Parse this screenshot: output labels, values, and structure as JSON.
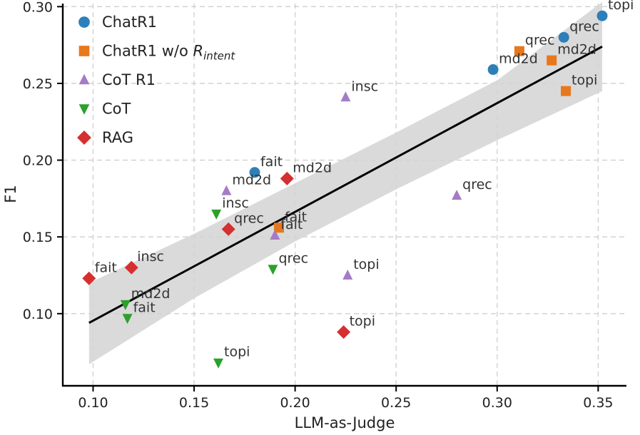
{
  "chart_data": {
    "type": "scatter",
    "xlabel": "LLM-as-Judge",
    "ylabel": "F1",
    "xlim": [
      0.085,
      0.364
    ],
    "ylim": [
      0.053,
      0.302
    ],
    "xticks": [
      0.1,
      0.15,
      0.2,
      0.25,
      0.3,
      0.35
    ],
    "xtick_labels": [
      "0.10",
      "0.15",
      "0.20",
      "0.25",
      "0.30",
      "0.35"
    ],
    "yticks": [
      0.1,
      0.15,
      0.2,
      0.25,
      0.3
    ],
    "ytick_labels": [
      "0.10",
      "0.15",
      "0.20",
      "0.25",
      "0.30"
    ],
    "grid": true,
    "legend_position": "top-left",
    "colors": {
      "chatr1": "#2e7fb9",
      "chatr1_wo": "#e8781c",
      "cot_r1": "#a57bc6",
      "cot": "#2ca02c",
      "rag": "#d62f2f",
      "fit_line": "#000000",
      "ci_band": "#d3d3d3"
    },
    "series": [
      {
        "name": "ChatR1",
        "legend": "ChatR1",
        "marker": "circle",
        "color_key": "chatr1",
        "points": [
          {
            "x": 0.352,
            "y": 0.294,
            "label": "topi"
          },
          {
            "x": 0.333,
            "y": 0.28,
            "label": "qrec"
          },
          {
            "x": 0.298,
            "y": 0.259,
            "label": "md2d"
          },
          {
            "x": 0.18,
            "y": 0.192,
            "label": "fait"
          }
        ]
      },
      {
        "name": "ChatR1 w/o R_intent",
        "legend": "ChatR1 w/o ",
        "legend_r": "R",
        "legend_sub": "intent",
        "marker": "square",
        "color_key": "chatr1_wo",
        "points": [
          {
            "x": 0.311,
            "y": 0.271,
            "label": "qrec"
          },
          {
            "x": 0.327,
            "y": 0.265,
            "label": "md2d"
          },
          {
            "x": 0.334,
            "y": 0.245,
            "label": "topi"
          },
          {
            "x": 0.192,
            "y": 0.156,
            "label": "fait"
          }
        ]
      },
      {
        "name": "CoT R1",
        "legend": "CoT R1",
        "marker": "triangle-up",
        "color_key": "cot_r1",
        "points": [
          {
            "x": 0.225,
            "y": 0.241,
            "label": "insc"
          },
          {
            "x": 0.166,
            "y": 0.18,
            "label": "md2d"
          },
          {
            "x": 0.28,
            "y": 0.177,
            "label": "qrec"
          },
          {
            "x": 0.19,
            "y": 0.151,
            "label": "fait"
          },
          {
            "x": 0.226,
            "y": 0.125,
            "label": "topi"
          }
        ]
      },
      {
        "name": "CoT",
        "legend": "CoT",
        "marker": "triangle-down",
        "color_key": "cot",
        "points": [
          {
            "x": 0.161,
            "y": 0.165,
            "label": "insc"
          },
          {
            "x": 0.189,
            "y": 0.129,
            "label": "qrec"
          },
          {
            "x": 0.116,
            "y": 0.106,
            "label": "md2d"
          },
          {
            "x": 0.117,
            "y": 0.097,
            "label": "fait"
          },
          {
            "x": 0.162,
            "y": 0.068,
            "label": "topi"
          }
        ]
      },
      {
        "name": "RAG",
        "legend": "RAG",
        "marker": "diamond",
        "color_key": "rag",
        "points": [
          {
            "x": 0.196,
            "y": 0.188,
            "label": "md2d"
          },
          {
            "x": 0.167,
            "y": 0.155,
            "label": "qrec"
          },
          {
            "x": 0.119,
            "y": 0.13,
            "label": "insc"
          },
          {
            "x": 0.098,
            "y": 0.123,
            "label": "fait"
          },
          {
            "x": 0.224,
            "y": 0.088,
            "label": "topi"
          }
        ]
      }
    ],
    "fit_line": {
      "x": [
        0.098,
        0.352
      ],
      "y": [
        0.094,
        0.274
      ]
    },
    "ci_band": {
      "x": [
        0.098,
        0.15,
        0.2,
        0.25,
        0.3,
        0.352
      ],
      "lower": [
        0.067,
        0.11,
        0.147,
        0.181,
        0.213,
        0.245
      ],
      "upper": [
        0.12,
        0.152,
        0.185,
        0.218,
        0.252,
        0.303
      ]
    }
  }
}
